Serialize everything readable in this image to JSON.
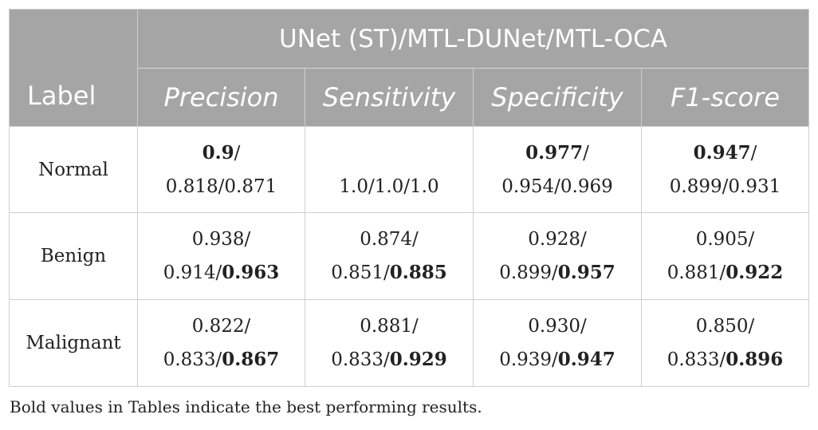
{
  "table": {
    "group_header": "UNet (ST)/MTL-DUNet/MTL-OCA",
    "label_header": "Label",
    "metrics": [
      "Precision",
      "Sensitivity",
      "Specificity",
      "F1-score"
    ],
    "rows": [
      {
        "label": "Normal",
        "cells": [
          {
            "line1": "0.9",
            "line1_sep": "/",
            "line2a": "0.818/0.871",
            "line2b": ""
          },
          {
            "line1": "",
            "line1_sep": "",
            "line2a": "1.0/1.0/1.0",
            "line2b": ""
          },
          {
            "line1": "0.977",
            "line1_sep": "/",
            "line2a": "0.954/0.969",
            "line2b": ""
          },
          {
            "line1": "0.947",
            "line1_sep": "/",
            "line2a": "0.899/0.931",
            "line2b": ""
          }
        ]
      },
      {
        "label": "Benign",
        "cells": [
          {
            "line1": "0.938/",
            "line2a": "0.914/",
            "line2b": "0.963"
          },
          {
            "line1": "0.874/",
            "line2a": "0.851/",
            "line2b": "0.885"
          },
          {
            "line1": "0.928/",
            "line2a": "0.899/",
            "line2b": "0.957"
          },
          {
            "line1": "0.905/",
            "line2a": "0.881/",
            "line2b": "0.922"
          }
        ]
      },
      {
        "label": "Malignant",
        "cells": [
          {
            "line1": "0.822/",
            "line2a": "0.833/",
            "line2b": "0.867"
          },
          {
            "line1": "0.881/",
            "line2a": "0.833/",
            "line2b": "0.929"
          },
          {
            "line1": "0.930/",
            "line2a": "0.939/",
            "line2b": "0.947"
          },
          {
            "line1": "0.850/",
            "line2a": "0.833/",
            "line2b": "0.896"
          }
        ]
      }
    ]
  },
  "footnote": "Bold values in Tables indicate the best performing results.",
  "colors": {
    "header_bg": "#a5a5a5",
    "header_text": "#ffffff",
    "border": "#cfcfcf",
    "body_text": "#222222"
  }
}
